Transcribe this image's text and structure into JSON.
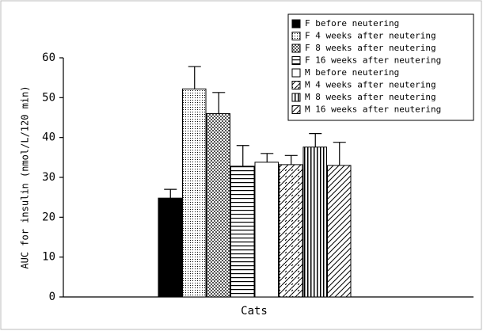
{
  "chart_data": {
    "type": "bar",
    "y_label": "AUC for insulin (nmol/L/120 min)",
    "x_label": "Cats",
    "ylim": [
      0,
      60
    ],
    "yticks": [
      0,
      10,
      20,
      30,
      40,
      50,
      60
    ],
    "legend_position": "upper right",
    "series": [
      {
        "name": "F before neutering",
        "pattern": "solid",
        "values": [
          24.8
        ],
        "errors": [
          2.2
        ]
      },
      {
        "name": "F 4 weeks after neutering",
        "pattern": "dots",
        "values": [
          52.2
        ],
        "errors": [
          5.6
        ]
      },
      {
        "name": "F 8 weeks after neutering",
        "pattern": "checks",
        "values": [
          46
        ],
        "errors": [
          5.3
        ]
      },
      {
        "name": "F 16 weeks after neutering",
        "pattern": "hlines",
        "values": [
          32.8
        ],
        "errors": [
          5.2
        ]
      },
      {
        "name": "M before neutering",
        "pattern": "none",
        "values": [
          33.8
        ],
        "errors": [
          2.2
        ]
      },
      {
        "name": "M 4 weeks after neutering",
        "pattern": "zigzag",
        "values": [
          33.2
        ],
        "errors": [
          2.3
        ]
      },
      {
        "name": "M 8 weeks after neutering",
        "pattern": "vlines",
        "values": [
          37.6
        ],
        "errors": [
          3.4
        ]
      },
      {
        "name": "M 16 weeks after neutering",
        "pattern": "diag",
        "values": [
          33
        ],
        "errors": [
          5.8
        ]
      }
    ]
  }
}
